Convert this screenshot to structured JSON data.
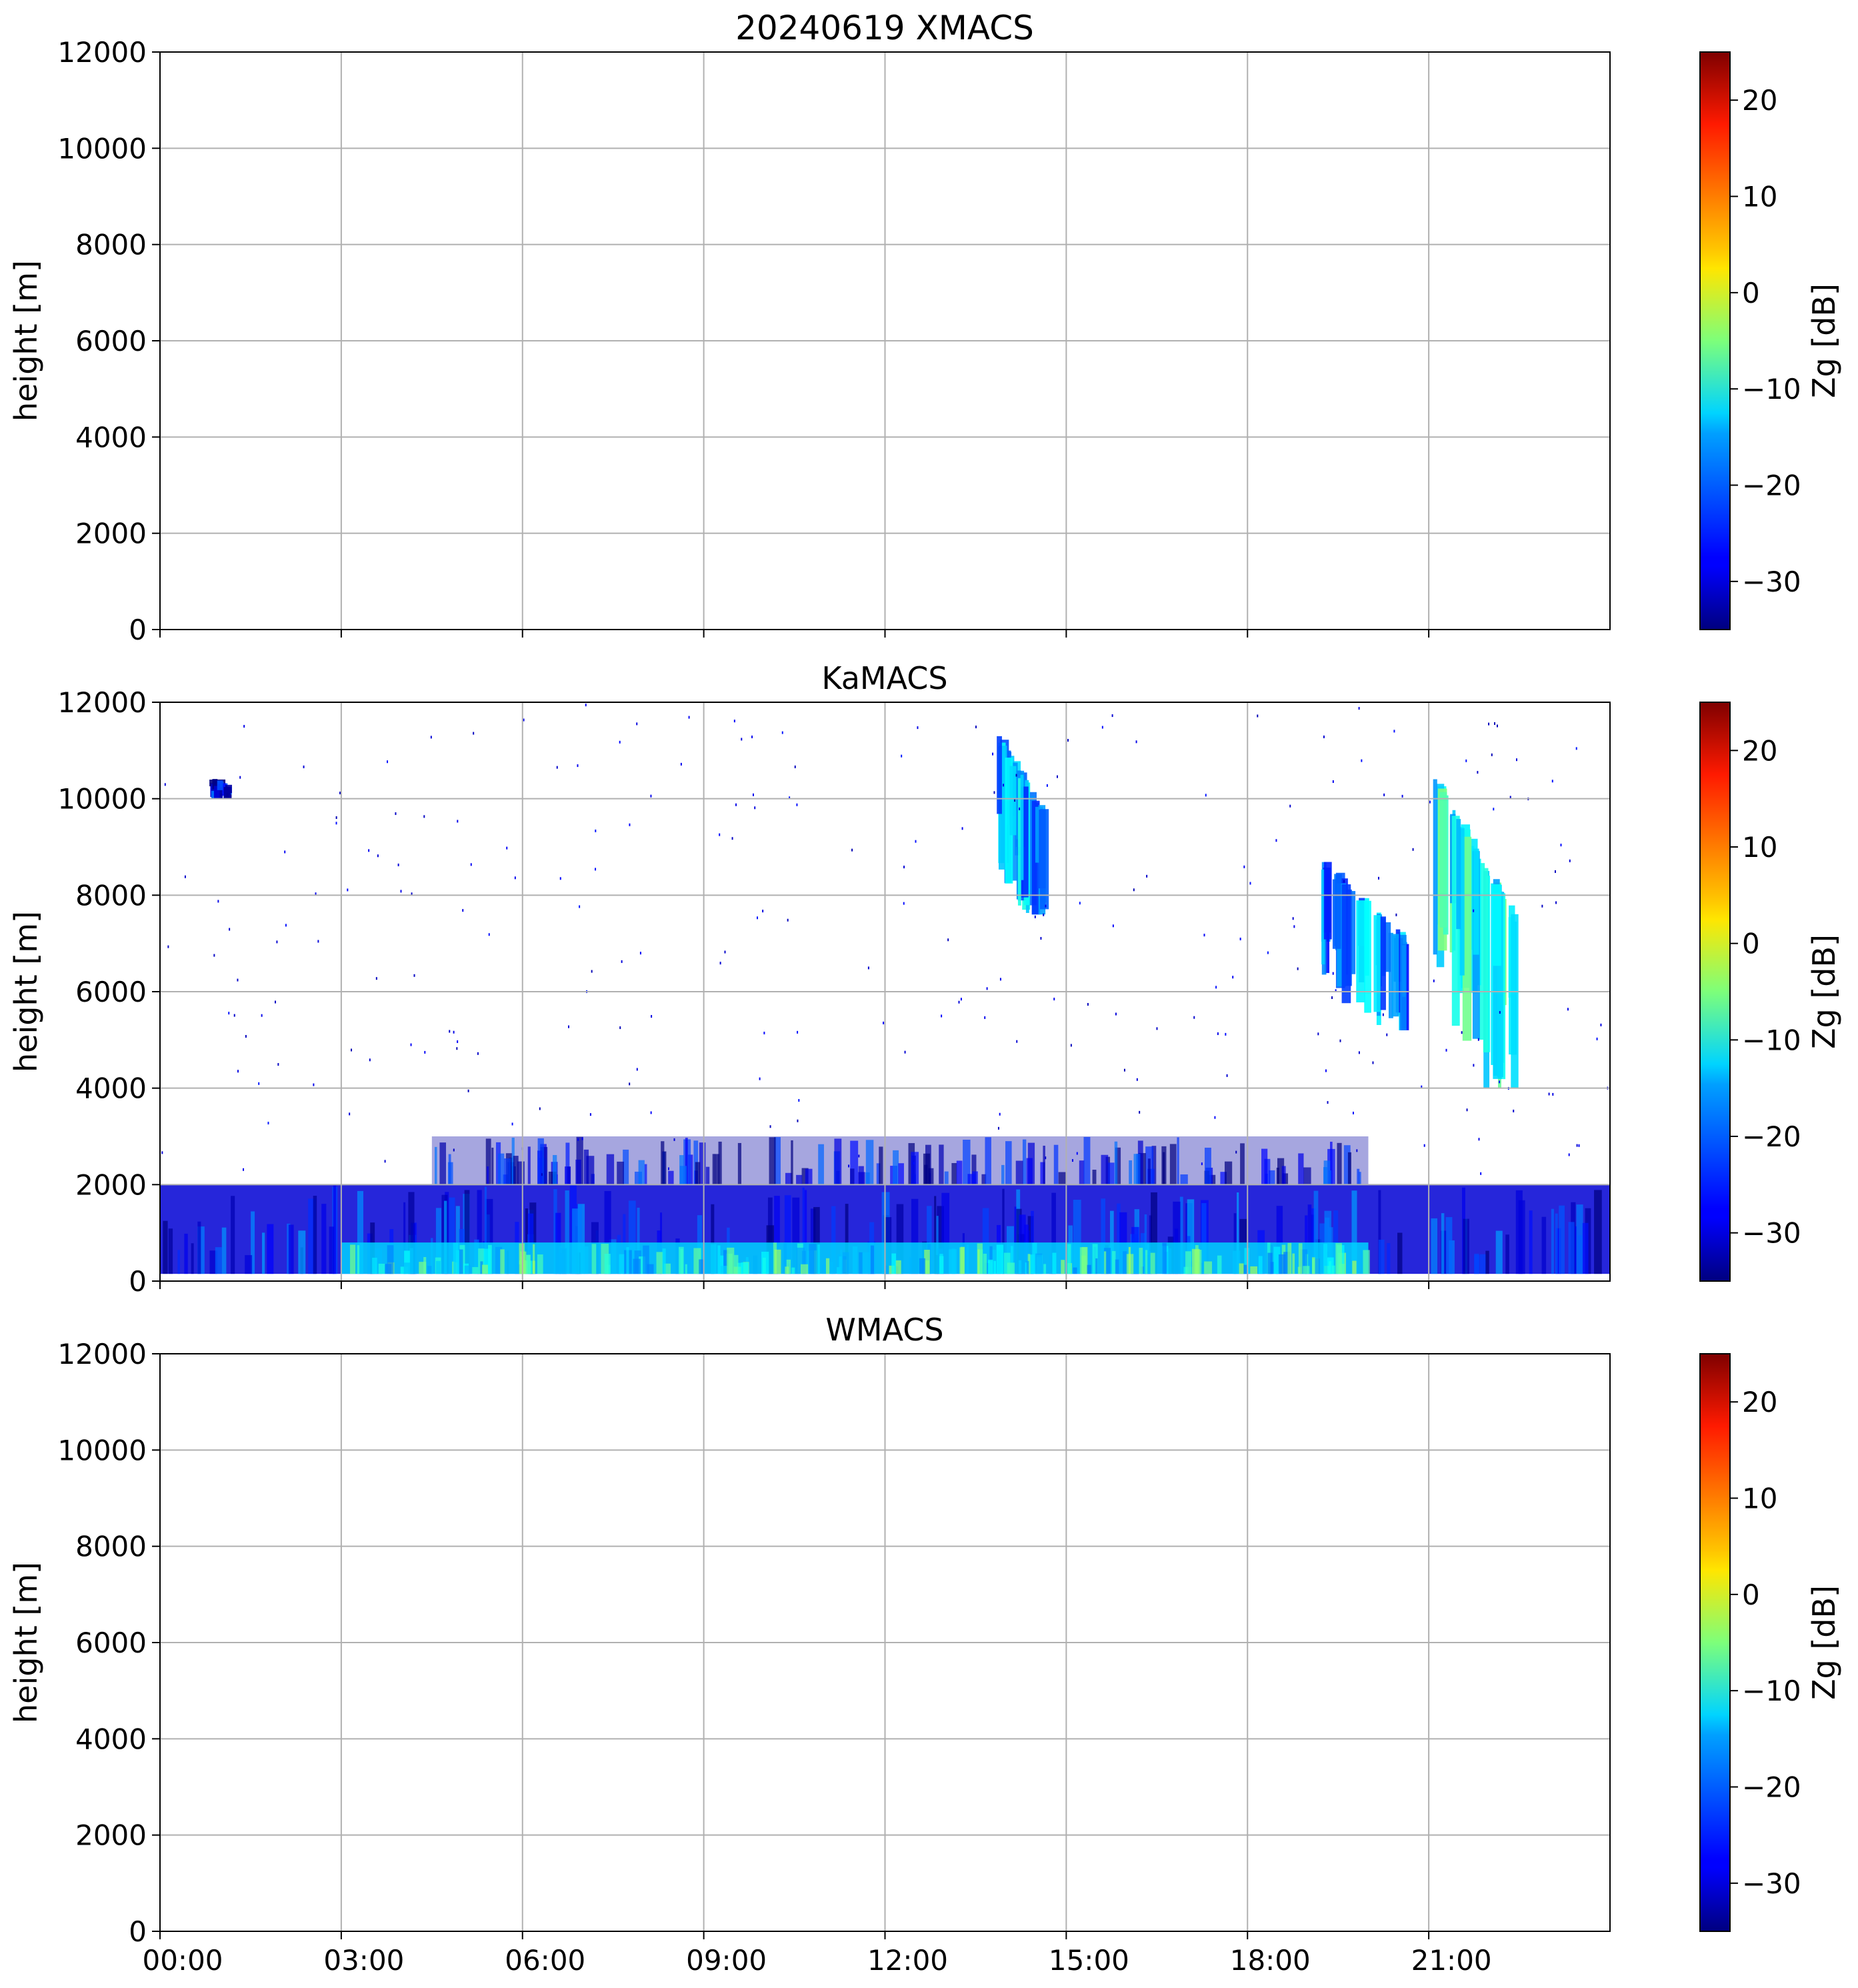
{
  "figure": {
    "time_tick_labels": [
      "00:00",
      "03:00",
      "06:00",
      "09:00",
      "12:00",
      "15:00",
      "18:00",
      "21:00"
    ],
    "height_tick_labels": [
      "0",
      "2000",
      "4000",
      "6000",
      "8000",
      "10000",
      "12000"
    ],
    "colorbar_tick_labels": [
      "−30",
      "−20",
      "−10",
      "0",
      "10",
      "20"
    ],
    "ylabel": "height [m]",
    "colorbar_label": "Zg [dB]"
  },
  "chart_data": [
    {
      "type": "heatmap",
      "title": "20240619 XMACS",
      "xlabel": "",
      "ylabel": "height [m]",
      "x_range_hours": [
        0,
        24
      ],
      "ylim": [
        0,
        12000
      ],
      "colorbar": {
        "label": "Zg [dB]",
        "range": [
          -35,
          25
        ],
        "colormap": "jet"
      },
      "grid": true,
      "data_present": false,
      "cloud_regions": []
    },
    {
      "type": "heatmap",
      "title": "KaMACS",
      "xlabel": "",
      "ylabel": "height [m]",
      "x_range_hours": [
        0,
        24
      ],
      "ylim": [
        0,
        12000
      ],
      "colorbar": {
        "label": "Zg [dB]",
        "range": [
          -35,
          25
        ],
        "colormap": "jet"
      },
      "grid": true,
      "data_present": true,
      "cloud_regions": [
        {
          "name": "boundary-layer-echo",
          "time_start_h": 0.0,
          "time_end_h": 24.0,
          "base_m": 150,
          "top_m": 2000,
          "zg_dB": -30
        },
        {
          "name": "lower-layer-enhanced-echo",
          "time_start_h": 3.0,
          "time_end_h": 20.0,
          "base_m": 150,
          "top_m": 800,
          "zg_dB": -15
        },
        {
          "name": "upper-sparse-echo",
          "time_start_h": 4.5,
          "time_end_h": 20.0,
          "base_m": 2000,
          "top_m": 3000,
          "zg_dB": -33
        },
        {
          "name": "cirrus-1",
          "time_start_h": 13.8,
          "time_end_h": 14.6,
          "base_m": 7600,
          "top_m": 11500,
          "zg_dB": -18
        },
        {
          "name": "cirrus-2",
          "time_start_h": 19.2,
          "time_end_h": 20.6,
          "base_m": 5200,
          "top_m": 8800,
          "zg_dB": -20
        },
        {
          "name": "cirrus-3",
          "time_start_h": 21.0,
          "time_end_h": 22.4,
          "base_m": 4000,
          "top_m": 10600,
          "zg_dB": -12
        },
        {
          "name": "small-cloud-early",
          "time_start_h": 0.8,
          "time_end_h": 1.1,
          "base_m": 10000,
          "top_m": 10500,
          "zg_dB": -28
        }
      ]
    },
    {
      "type": "heatmap",
      "title": "WMACS",
      "xlabel": "",
      "ylabel": "height [m]",
      "x_range_hours": [
        0,
        24
      ],
      "ylim": [
        0,
        12000
      ],
      "colorbar": {
        "label": "Zg [dB]",
        "range": [
          -35,
          25
        ],
        "colormap": "jet"
      },
      "grid": true,
      "data_present": false,
      "cloud_regions": []
    }
  ]
}
